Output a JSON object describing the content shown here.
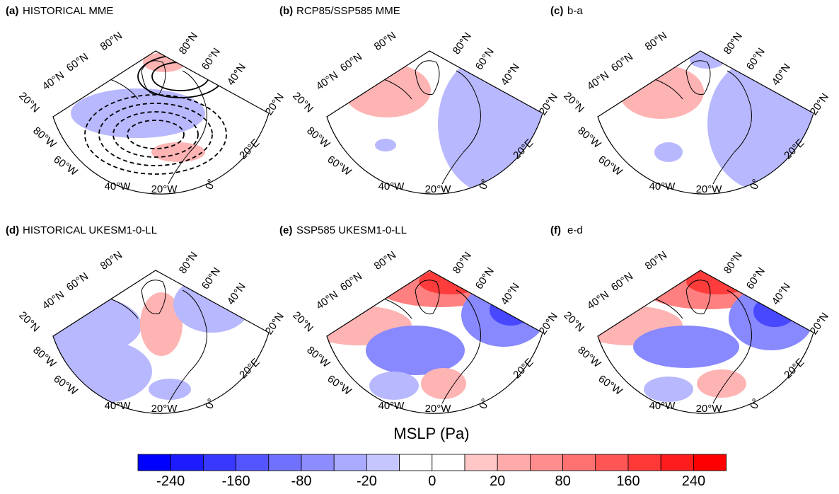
{
  "panels": [
    {
      "label": "(a)",
      "title": "HISTORICAL MME"
    },
    {
      "label": "(b)",
      "title": "RCP85/SSP585 MME"
    },
    {
      "label": "(c)",
      "title": "b-a"
    },
    {
      "label": "(d)",
      "title": "HISTORICAL UKESM1-0-LL"
    },
    {
      "label": "(e)",
      "title": "SSP585 UKESM1-0-LL"
    },
    {
      "label": "(f)",
      "title": "e-d"
    }
  ],
  "map_labels": {
    "lat": [
      "80°N",
      "60°N",
      "40°N",
      "20°N"
    ],
    "lon": [
      "80°W",
      "60°W",
      "40°W",
      "20°W",
      "0°",
      "20°E"
    ]
  },
  "colorbar": {
    "title": "MSLP (Pa)",
    "ticks": [
      -240,
      -160,
      -80,
      -20,
      0,
      20,
      80,
      160,
      240
    ]
  }
}
